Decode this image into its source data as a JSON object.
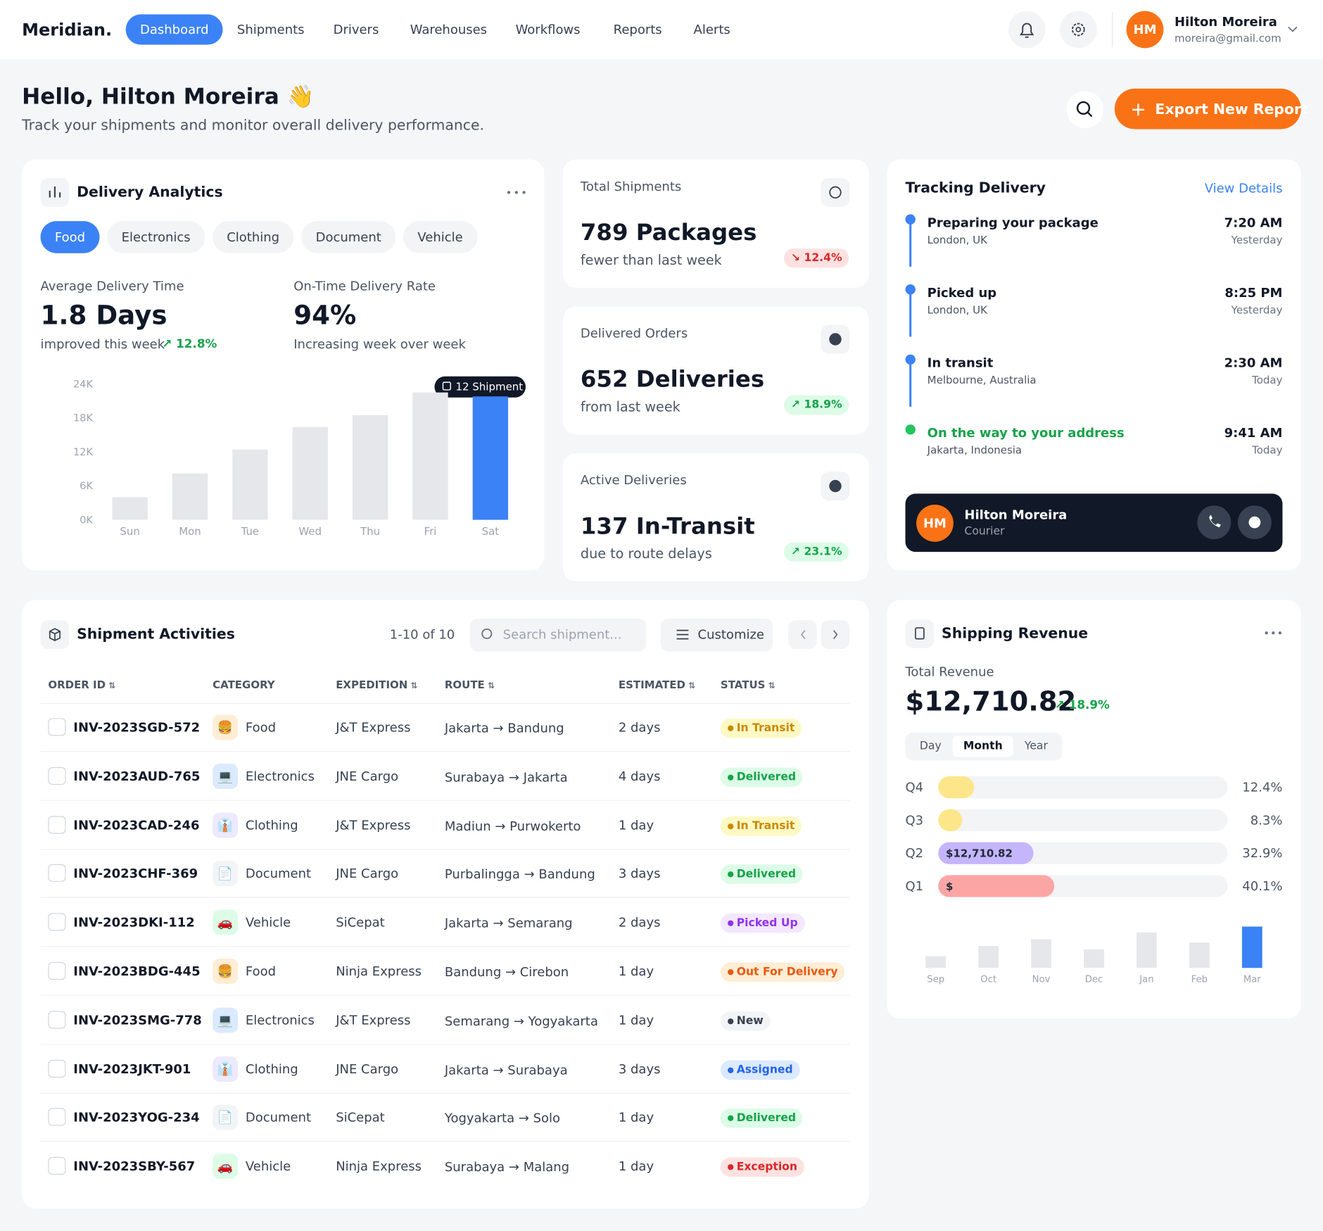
{
  "header": {
    "logo": "Meridian.",
    "nav": [
      "Dashboard",
      "Shipments",
      "Drivers",
      "Warehouses",
      "Workflows",
      "Reports",
      "Alerts"
    ],
    "active_nav": 0,
    "user": {
      "initials": "HM",
      "name": "Hilton Moreira",
      "email": "moreira@gmail.com"
    }
  },
  "greeting": {
    "title": "Hello, Hilton Moreira 👋",
    "subtitle": "Track your shipments and monitor overall delivery performance.",
    "button": "Export New Report"
  },
  "delivery_analytics": {
    "title": "Delivery Analytics",
    "tabs": [
      "Food",
      "Electronics",
      "Clothing",
      "Document",
      "Vehicle"
    ],
    "active_tab": 0,
    "metrics": [
      {
        "label": "Average Delivery Time",
        "value": "1.8 Days",
        "note": "improved this week",
        "change": "12.8%"
      },
      {
        "label": "On-Time Delivery Rate",
        "value": "94%",
        "note": "Increasing week over week"
      }
    ],
    "chart_data": {
      "type": "bar",
      "categories": [
        "Sun",
        "Mon",
        "Tue",
        "Wed",
        "Thu",
        "Fri",
        "Sat"
      ],
      "values": [
        4000,
        8200,
        12400,
        16400,
        18500,
        22500,
        21800
      ],
      "color": "#e5e7eb",
      "highlight": 6,
      "highlight_color": "#3b82f6",
      "ylim": [
        0,
        24000
      ],
      "yticks": [
        {
          "value": 0,
          "label": "0K"
        },
        {
          "value": 6000,
          "label": "6K"
        },
        {
          "value": 12000,
          "label": "12K"
        },
        {
          "value": 18000,
          "label": "18K"
        },
        {
          "value": 24000,
          "label": "24K"
        }
      ],
      "annotation": "12 Shipment"
    }
  },
  "stats": [
    {
      "label": "Total Shipments",
      "value": "789 Packages",
      "note": "fewer than last week",
      "change": "12.4%",
      "trend": "down"
    },
    {
      "label": "Delivered Orders",
      "value": "652 Deliveries",
      "note": "from last week",
      "change": "18.9%",
      "trend": "up"
    },
    {
      "label": "Active Deliveries",
      "value": "137 In-Transit",
      "note": "due to route delays",
      "change": "23.1%",
      "trend": "up"
    }
  ],
  "tracking": {
    "title": "Tracking Delivery",
    "link": "View Details",
    "steps": [
      {
        "title": "Preparing your package",
        "place": "London, UK",
        "time": "7:20 AM",
        "day": "Yesterday"
      },
      {
        "title": "Picked up",
        "place": "London, UK",
        "time": "8:25 PM",
        "day": "Yesterday"
      },
      {
        "title": "In transit",
        "place": "Melbourne, Australia",
        "time": "2:30 AM",
        "day": "Today"
      },
      {
        "title": "On the way to your address",
        "place": "Jakarta, Indonesia",
        "time": "9:41 AM",
        "day": "Today"
      }
    ],
    "current_step": 3,
    "courier": {
      "initials": "HM",
      "name": "Hilton Moreira",
      "role": "Courier"
    }
  },
  "activities": {
    "title": "Shipment Activities",
    "count": "1-10 of 10",
    "search": "Search shipment...",
    "button": "Customize",
    "columns": [
      "ORDER ID",
      "CATEGORY",
      "EXPEDITION",
      "ROUTE",
      "ESTIMATED",
      "STATUS"
    ],
    "sortable": [
      true,
      false,
      true,
      true,
      true,
      true
    ],
    "rows": [
      {
        "order_id": "INV-2023SGD-572",
        "icon": "🍔",
        "category": "Food",
        "expedition": "J&T Express",
        "route": "Jakarta → Bandung",
        "estimated": "2 days",
        "status": "In Transit",
        "status_color": "#ca8a04",
        "status_bg": "#fef9c3",
        "icon_bg": "#ffedd5"
      },
      {
        "order_id": "INV-2023AUD-765",
        "icon": "💻",
        "category": "Electronics",
        "expedition": "JNE Cargo",
        "route": "Surabaya → Jakarta",
        "estimated": "4 days",
        "status": "Delivered",
        "status_color": "#16a34a",
        "status_bg": "#dcfce7",
        "icon_bg": "#dbeafe"
      },
      {
        "order_id": "INV-2023CAD-246",
        "icon": "👔",
        "category": "Clothing",
        "expedition": "J&T Express",
        "route": "Madiun → Purwokerto",
        "estimated": "1 day",
        "status": "In Transit",
        "status_color": "#ca8a04",
        "status_bg": "#fef9c3",
        "icon_bg": "#ede9fe"
      },
      {
        "order_id": "INV-2023CHF-369",
        "icon": "📄",
        "category": "Document",
        "expedition": "JNE Cargo",
        "route": "Purbalingga → Bandung",
        "estimated": "3 days",
        "status": "Delivered",
        "status_color": "#16a34a",
        "status_bg": "#dcfce7",
        "icon_bg": "#f3f4f6"
      },
      {
        "order_id": "INV-2023DKI-112",
        "icon": "🚗",
        "category": "Vehicle",
        "expedition": "SiCepat",
        "route": "Jakarta → Semarang",
        "estimated": "2 days",
        "status": "Picked Up",
        "status_color": "#9333ea",
        "status_bg": "#f3e8ff",
        "icon_bg": "#dcfce7"
      },
      {
        "order_id": "INV-2023BDG-445",
        "icon": "🍔",
        "category": "Food",
        "expedition": "Ninja Express",
        "route": "Bandung → Cirebon",
        "estimated": "1 day",
        "status": "Out For Delivery",
        "status_color": "#ea580c",
        "status_bg": "#ffedd5",
        "icon_bg": "#ffedd5"
      },
      {
        "order_id": "INV-2023SMG-778",
        "icon": "💻",
        "category": "Electronics",
        "expedition": "J&T Express",
        "route": "Semarang → Yogyakarta",
        "estimated": "1 day",
        "status": "New",
        "status_color": "#374151",
        "status_bg": "#f3f4f6",
        "icon_bg": "#dbeafe"
      },
      {
        "order_id": "INV-2023JKT-901",
        "icon": "👔",
        "category": "Clothing",
        "expedition": "JNE Cargo",
        "route": "Jakarta → Surabaya",
        "estimated": "3 days",
        "status": "Assigned",
        "status_color": "#2563eb",
        "status_bg": "#dbeafe",
        "icon_bg": "#ede9fe"
      },
      {
        "order_id": "INV-2023YOG-234",
        "icon": "📄",
        "category": "Document",
        "expedition": "SiCepat",
        "route": "Yogyakarta → Solo",
        "estimated": "1 day",
        "status": "Delivered",
        "status_color": "#16a34a",
        "status_bg": "#dcfce7",
        "icon_bg": "#f3f4f6"
      },
      {
        "order_id": "INV-2023SBY-567",
        "icon": "🚗",
        "category": "Vehicle",
        "expedition": "Ninja Express",
        "route": "Surabaya → Malang",
        "estimated": "1 day",
        "status": "Exception",
        "status_color": "#dc2626",
        "status_bg": "#fee2e2",
        "icon_bg": "#dcfce7"
      }
    ]
  },
  "revenue": {
    "title": "Shipping Revenue",
    "label": "Total Revenue",
    "value": "$12,710.82",
    "change": "18.9%",
    "periods": [
      "Day",
      "Month",
      "Year"
    ],
    "active_period": 1,
    "quarters": {
      "type": "bar",
      "categories": [
        "Q4",
        "Q3",
        "Q2",
        "Q1"
      ],
      "values": [
        12.4,
        8.3,
        32.9,
        40.1
      ],
      "value_labels": [
        "12.4%",
        "8.3%",
        "32.9%",
        "40.1%"
      ],
      "bar_labels": [
        null,
        null,
        "$12,710.82",
        "$"
      ],
      "colors": [
        "#fde68a",
        "#fde68a",
        "#c4b5fd",
        "#fca5a5"
      ],
      "xlim": [
        0,
        100
      ]
    },
    "monthly": {
      "type": "bar",
      "categories": [
        "Sep",
        "Oct",
        "Nov",
        "Dec",
        "Jan",
        "Feb",
        "Mar"
      ],
      "values": [
        14,
        26,
        34,
        22,
        42,
        30,
        49
      ],
      "ylim": [
        0,
        50
      ],
      "color": "#e5e7eb",
      "highlight": 6,
      "highlight_color": "#3b82f6"
    }
  }
}
